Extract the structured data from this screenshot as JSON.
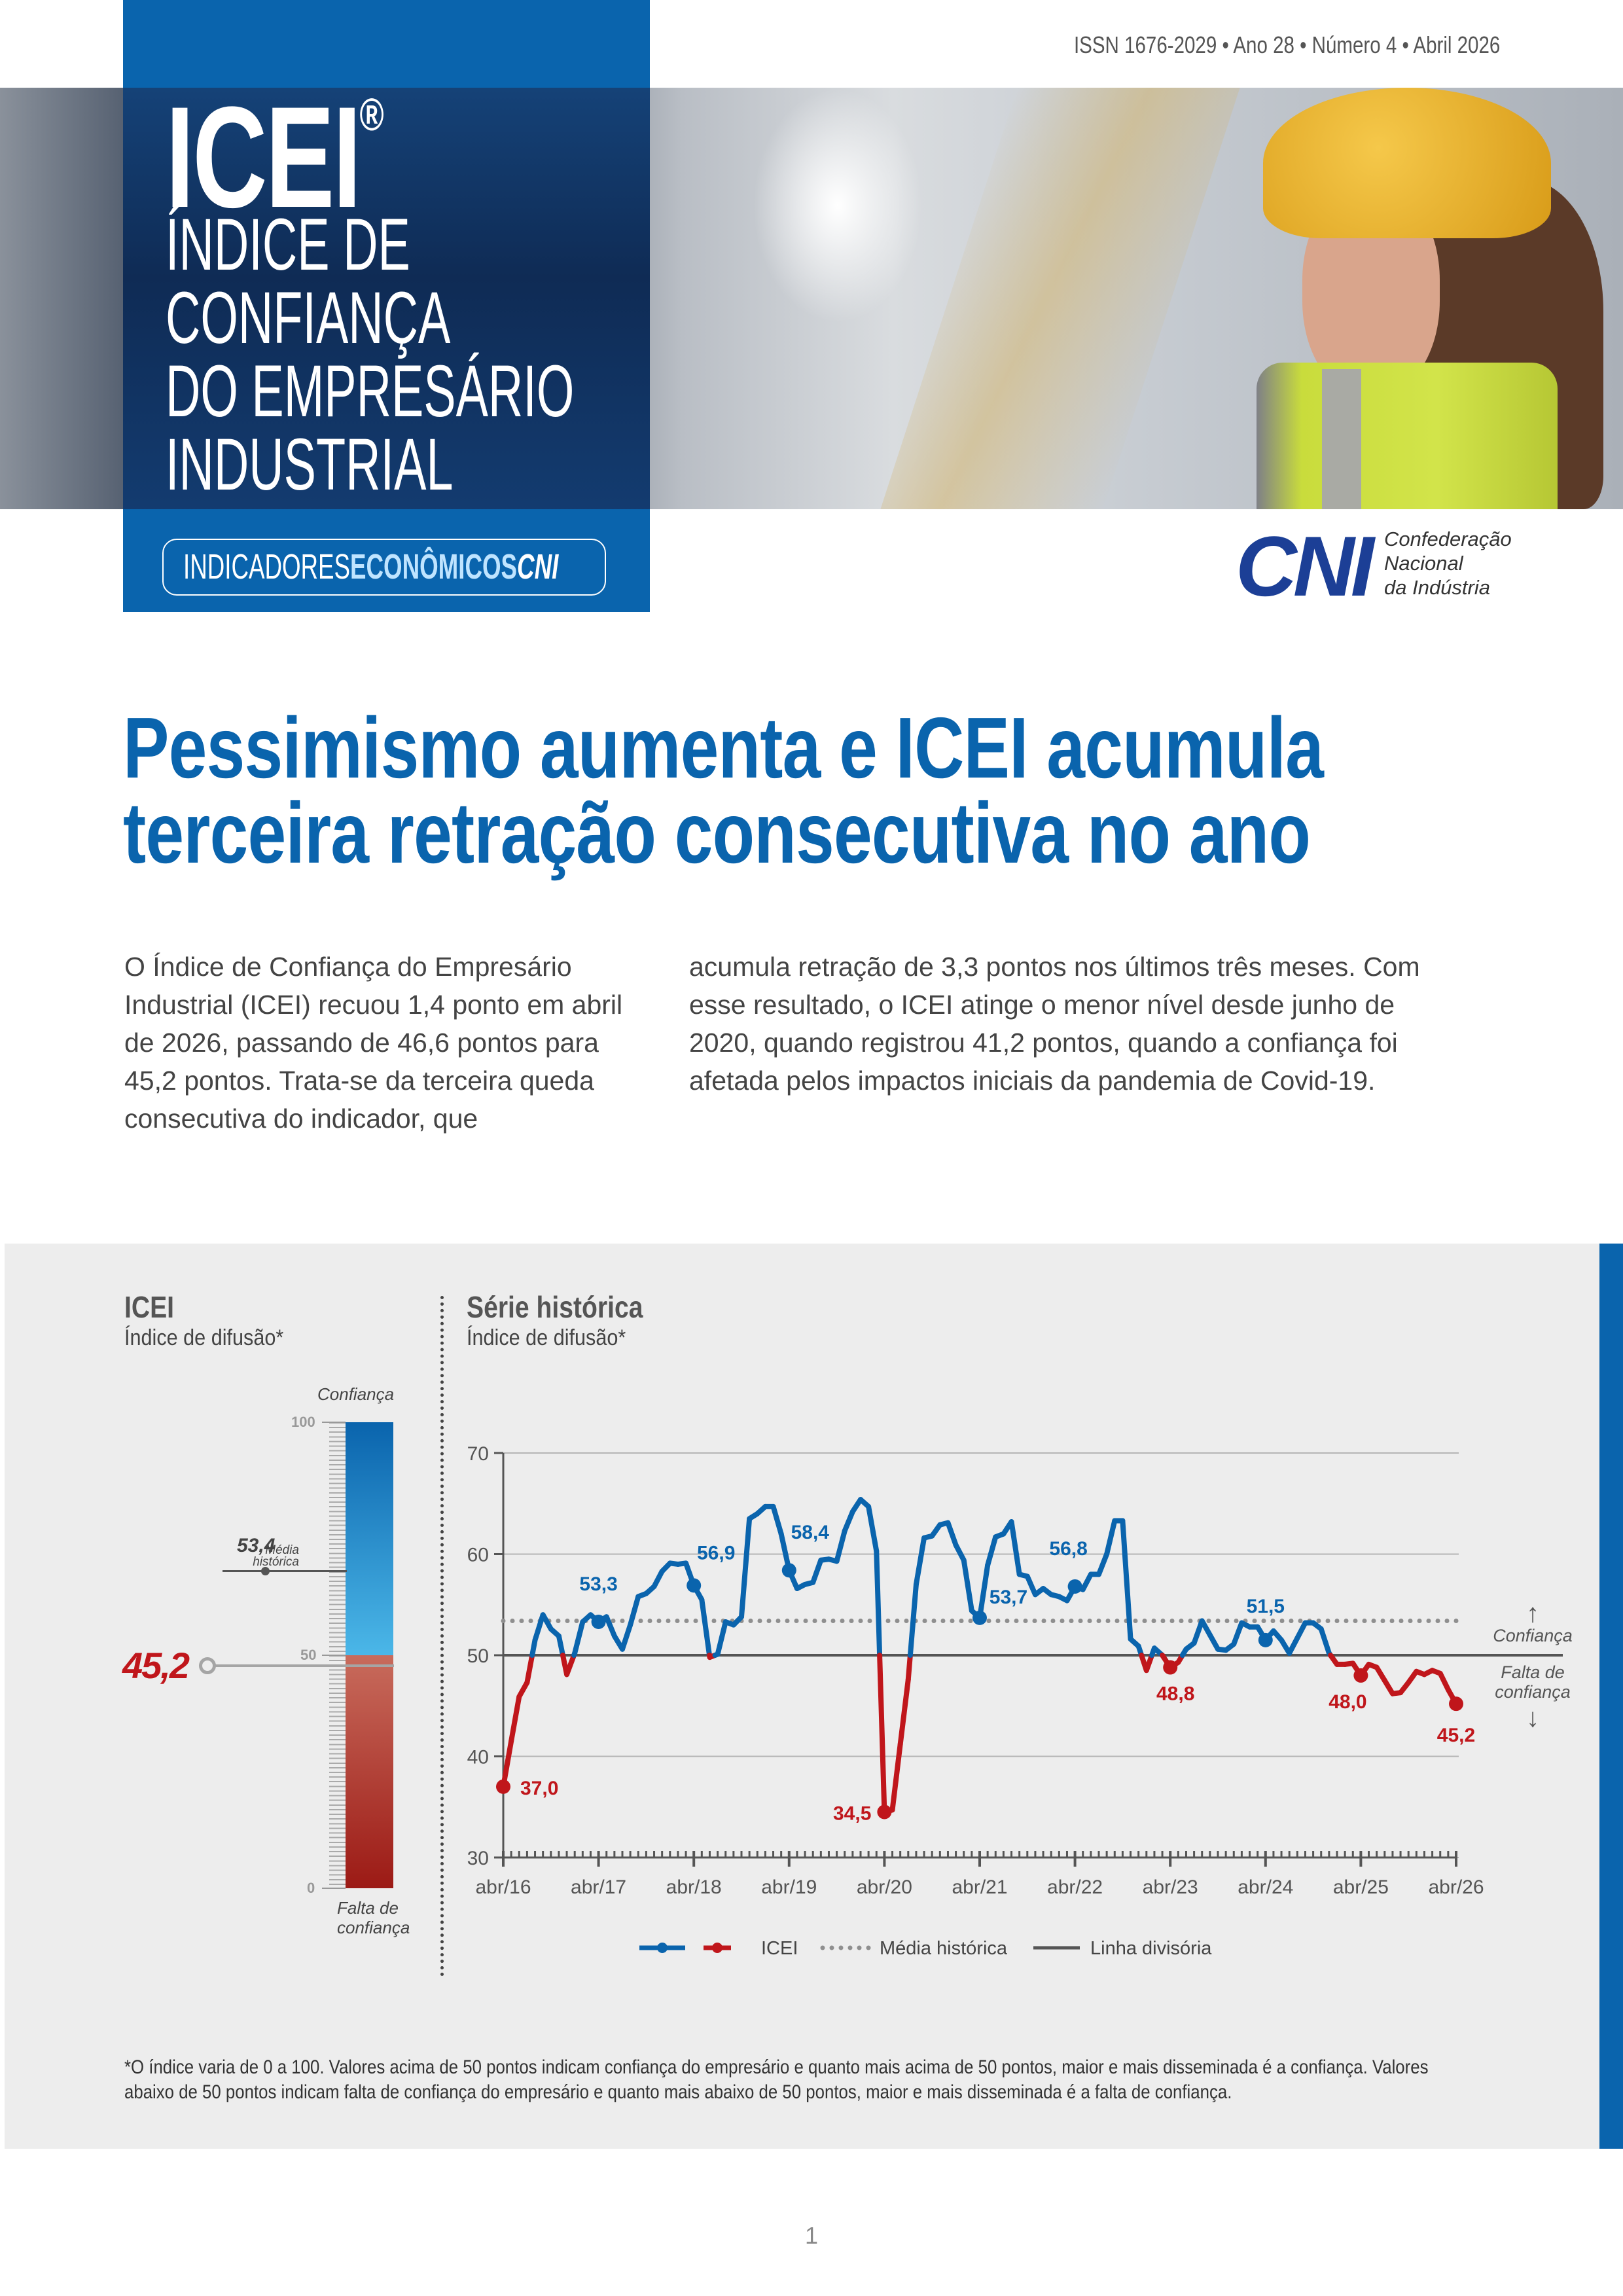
{
  "header": {
    "issn": "ISSN 1676-2029 • Ano 28 • Número 4 • Abril 2026",
    "title": "ICEI",
    "registered": "®",
    "subtitle_lines": [
      "ÍNDICE DE",
      "CONFIANÇA",
      "DO EMPRESÁRIO",
      "INDUSTRIAL"
    ],
    "badge": {
      "part1": "INDICADORES",
      "part2": "ECONÔMICOS",
      "part3": "CNI"
    },
    "logo": {
      "mark": "CNI",
      "lines": [
        "Confederação",
        "Nacional",
        "da Indústria"
      ]
    }
  },
  "article": {
    "headline_lines": [
      "Pessimismo aumenta e ICEI acumula",
      "terceira retração consecutiva no ano"
    ],
    "col1": "O Índice de Confiança do Empresário Industrial (ICEI) recuou 1,4 ponto em abril de 2026, passando de 46,6 pontos para 45,2 pontos. Trata-se da terceira queda consecutiva do indicador, que",
    "col2": "acumula retração de 3,3 pontos nos últimos três meses. Com esse resultado, o ICEI atinge o menor nível desde junho de 2020, quando registrou 41,2 pontos, quando a confiança foi afetada pelos impactos iniciais da pandemia de Covid-19."
  },
  "gauge": {
    "title": "ICEI",
    "subtitle": "Índice de difusão*",
    "top_label": "Confiança",
    "bottom_label_1": "Falta de",
    "bottom_label_2": "confiança",
    "ticks": [
      "100",
      "50",
      "0"
    ],
    "current_value": 45.2,
    "current_label": "45,2",
    "average_label_1": "Média",
    "average_label_2": "histórica",
    "average_value": 53.4,
    "average_label": "53,4"
  },
  "chart_data": {
    "type": "line",
    "title": "Série histórica",
    "subtitle": "Índice de difusão*",
    "ylim": [
      30,
      70
    ],
    "yticks": [
      "30",
      "40",
      "50",
      "60",
      "70"
    ],
    "xtick_labels": [
      "abr/16",
      "abr/17",
      "abr/18",
      "abr/19",
      "abr/20",
      "abr/21",
      "abr/22",
      "abr/23",
      "abr/24",
      "abr/25",
      "abr/26"
    ],
    "start": "abr/16",
    "frequency": "monthly",
    "values": [
      37.0,
      41.5,
      45.9,
      47.3,
      51.5,
      54.0,
      52.6,
      51.9,
      48.1,
      50.2,
      53.3,
      54.0,
      53.3,
      53.8,
      51.9,
      50.6,
      53.0,
      55.8,
      56.1,
      56.8,
      58.3,
      59.1,
      59.0,
      59.1,
      56.9,
      55.5,
      49.8,
      50.1,
      53.3,
      53.0,
      53.8,
      63.5,
      64.0,
      64.7,
      64.7,
      62.0,
      58.4,
      56.6,
      57.0,
      57.2,
      59.4,
      59.5,
      59.3,
      62.3,
      64.2,
      65.4,
      64.7,
      60.3,
      34.5,
      34.7,
      41.2,
      47.6,
      57.0,
      61.6,
      61.8,
      62.9,
      63.1,
      60.9,
      59.4,
      54.4,
      53.7,
      58.9,
      61.7,
      62.0,
      63.2,
      58.0,
      57.8,
      56.0,
      56.6,
      56.0,
      55.8,
      55.4,
      56.8,
      56.5,
      58.0,
      58.0,
      60.0,
      63.3,
      63.3,
      51.6,
      50.9,
      48.5,
      50.7,
      50.0,
      48.8,
      49.3,
      50.6,
      51.2,
      53.4,
      52.0,
      50.6,
      50.5,
      51.1,
      53.2,
      52.8,
      52.8,
      51.5,
      52.4,
      51.5,
      50.2,
      51.7,
      53.2,
      53.2,
      52.6,
      50.2,
      49.1,
      49.1,
      49.2,
      48.0,
      49.1,
      48.8,
      47.5,
      46.2,
      46.3,
      47.3,
      48.4,
      48.1,
      48.5,
      48.2,
      46.6,
      45.2
    ],
    "annotations": [
      {
        "index": 0,
        "label": "37,0"
      },
      {
        "index": 12,
        "label": "53,3"
      },
      {
        "index": 24,
        "label": "56,9"
      },
      {
        "index": 36,
        "label": "58,4"
      },
      {
        "index": 48,
        "label": "34,5"
      },
      {
        "index": 60,
        "label": "53,7"
      },
      {
        "index": 72,
        "label": "56,8"
      },
      {
        "index": 84,
        "label": "48,8"
      },
      {
        "index": 96,
        "label": "51,5"
      },
      {
        "index": 108,
        "label": "48,0"
      },
      {
        "index": 120,
        "label": "45,2"
      }
    ],
    "historical_average": 53.4,
    "divider": 50,
    "colors": {
      "above": "#0a64ad",
      "below": "#c0161b",
      "average": "#8f8f8f",
      "divider": "#555555"
    },
    "side_labels": {
      "up": "Confiança",
      "down_1": "Falta de",
      "down_2": "confiança"
    },
    "legend": [
      {
        "label": "ICEI"
      },
      {
        "label": "Média histórica"
      },
      {
        "label": "Linha divisória"
      }
    ],
    "legend_position": "bottom"
  },
  "footnote": "*O índice varia de 0 a 100. Valores acima de 50 pontos indicam confiança do empresário e quanto mais acima de 50 pontos, maior e mais disseminada é a confiança. Valores abaixo de 50 pontos indicam falta de confiança do empresário e quanto mais abaixo de 50 pontos, maior e mais disseminada é a falta de confiança.",
  "page_number": "1"
}
